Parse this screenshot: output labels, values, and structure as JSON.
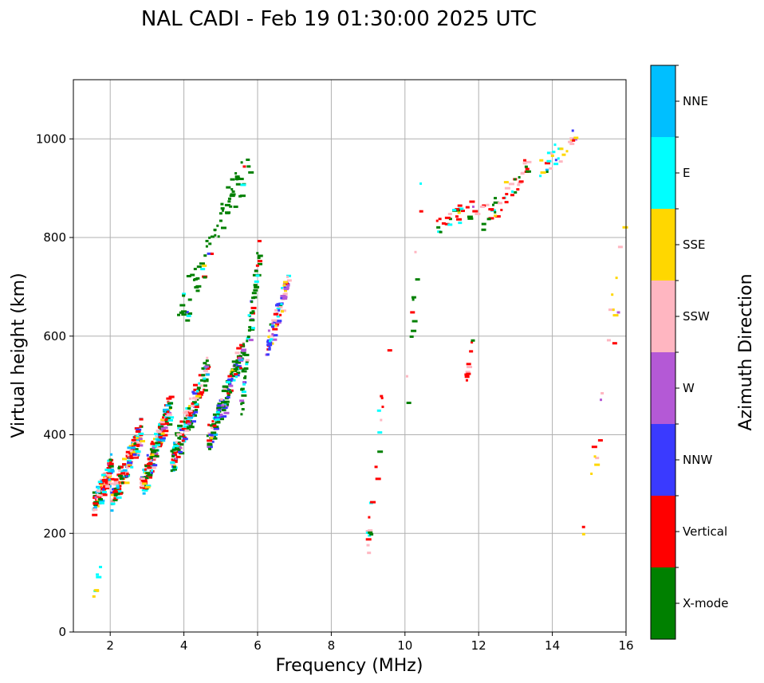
{
  "chart_data": {
    "type": "scatter",
    "title": "NAL CADI - Feb 19 01:30:00 2025 UTC",
    "xlabel": "Frequency (MHz)",
    "ylabel": "Virtual height (km)",
    "xlim": [
      1,
      16
    ],
    "ylim": [
      0,
      1120
    ],
    "xticks": [
      2,
      4,
      6,
      8,
      10,
      12,
      14,
      16
    ],
    "yticks": [
      0,
      200,
      400,
      600,
      800,
      1000
    ],
    "grid": true,
    "colorbar": {
      "label": "Azimuth Direction",
      "categories": [
        "X-mode",
        "Vertical",
        "NNW",
        "W",
        "SSW",
        "SSE",
        "E",
        "NNE"
      ],
      "colors": [
        "#008000",
        "#ff0000",
        "#3a3aff",
        "#b459d6",
        "#ffb6c1",
        "#ffd700",
        "#00ffff",
        "#00bfff"
      ]
    },
    "bands": [
      {
        "f0": 1.5,
        "f1": 2.0,
        "h0": 250,
        "h1": 345,
        "n": 120,
        "w": [
          0.12,
          0.35,
          0.05,
          0.02,
          0.16,
          0.08,
          0.12,
          0.1
        ]
      },
      {
        "f0": 2.0,
        "f1": 2.8,
        "h0": 260,
        "h1": 420,
        "n": 190,
        "w": [
          0.14,
          0.33,
          0.05,
          0.04,
          0.16,
          0.06,
          0.1,
          0.12
        ]
      },
      {
        "f0": 2.8,
        "f1": 3.6,
        "h0": 280,
        "h1": 480,
        "n": 190,
        "w": [
          0.22,
          0.3,
          0.06,
          0.05,
          0.13,
          0.04,
          0.12,
          0.08
        ]
      },
      {
        "f0": 3.6,
        "f1": 4.6,
        "h0": 330,
        "h1": 550,
        "n": 170,
        "w": [
          0.36,
          0.25,
          0.06,
          0.05,
          0.12,
          0.02,
          0.1,
          0.04
        ]
      },
      {
        "f0": 4.6,
        "f1": 5.6,
        "h0": 370,
        "h1": 600,
        "n": 160,
        "w": [
          0.52,
          0.12,
          0.06,
          0.08,
          0.1,
          0.02,
          0.08,
          0.02
        ]
      },
      {
        "f0": 3.8,
        "f1": 5.8,
        "h0": 600,
        "h1": 1000,
        "n": 75,
        "w": [
          0.85,
          0.04,
          0.02,
          0.02,
          0.02,
          0.01,
          0.04,
          0.0
        ]
      },
      {
        "f0": 5.5,
        "f1": 6.0,
        "h0": 430,
        "h1": 800,
        "n": 60,
        "w": [
          0.6,
          0.05,
          0.03,
          0.1,
          0.05,
          0.02,
          0.15,
          0.0
        ]
      },
      {
        "f0": 6.2,
        "f1": 6.8,
        "h0": 560,
        "h1": 735,
        "n": 80,
        "w": [
          0.06,
          0.1,
          0.22,
          0.22,
          0.18,
          0.1,
          0.12,
          0.0
        ]
      },
      {
        "f0": 10.8,
        "f1": 11.9,
        "h0": 815,
        "h1": 870,
        "n": 30,
        "w": [
          0.25,
          0.35,
          0.02,
          0.02,
          0.16,
          0.06,
          0.1,
          0.04
        ]
      },
      {
        "f0": 12.0,
        "f1": 13.3,
        "h0": 825,
        "h1": 950,
        "n": 45,
        "w": [
          0.2,
          0.35,
          0.02,
          0.02,
          0.3,
          0.06,
          0.05,
          0.0
        ]
      },
      {
        "f0": 13.6,
        "f1": 14.6,
        "h0": 930,
        "h1": 1015,
        "n": 30,
        "w": [
          0.15,
          0.05,
          0.05,
          0.05,
          0.2,
          0.25,
          0.2,
          0.05
        ]
      },
      {
        "f0": 8.9,
        "f1": 9.6,
        "h0": 90,
        "h1": 720,
        "n": 22,
        "w": [
          0.2,
          0.3,
          0.0,
          0.0,
          0.1,
          0.05,
          0.3,
          0.05
        ]
      },
      {
        "f0": 10.0,
        "f1": 10.4,
        "h0": 440,
        "h1": 910,
        "n": 12,
        "w": [
          0.5,
          0.3,
          0.0,
          0.0,
          0.1,
          0.0,
          0.1,
          0.0
        ]
      },
      {
        "f0": 11.6,
        "f1": 11.8,
        "h0": 510,
        "h1": 590,
        "n": 10,
        "w": [
          0.2,
          0.5,
          0.0,
          0.0,
          0.3,
          0.0,
          0.0,
          0.0
        ]
      },
      {
        "f0": 14.8,
        "f1": 16.0,
        "h0": 150,
        "h1": 900,
        "n": 20,
        "w": [
          0.0,
          0.3,
          0.0,
          0.05,
          0.3,
          0.35,
          0.0,
          0.0
        ]
      },
      {
        "f0": 1.5,
        "f1": 1.7,
        "h0": 85,
        "h1": 140,
        "n": 7,
        "w": [
          0.0,
          0.0,
          0.0,
          0.0,
          0.0,
          0.6,
          0.4,
          0.0
        ]
      }
    ]
  }
}
